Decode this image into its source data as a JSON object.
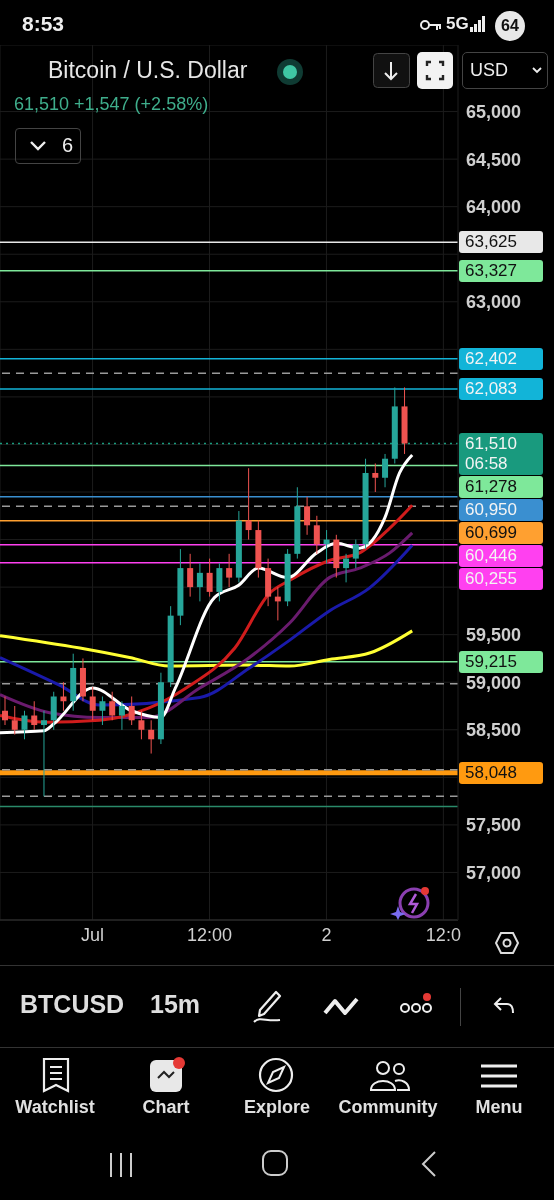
{
  "chart_data": {
    "type": "candlestick",
    "title": "Bitcoin / U.S. Dollar",
    "subtitle": "61,510 +1,547 (+2.58%)",
    "x": [
      "--06-30T15:00",
      "--06-30T16:00",
      "--06-30T17:00",
      "--06-30T18:00",
      "--06-30T19:00",
      "--06-30T20:00",
      "--06-30T21:00",
      "--06-30T22:00",
      "--06-30T23:00",
      "--07-01T00:00",
      "--07-01T01:00",
      "--07-01T02:00",
      "--07-01T03:00",
      "--07-01T04:00",
      "--07-01T05:00",
      "--07-01T06:00",
      "--07-01T07:00",
      "--07-01T08:00",
      "--07-01T09:00",
      "--07-01T10:00",
      "--07-01T11:00",
      "--07-01T12:00",
      "--07-01T13:00",
      "--07-01T14:00",
      "--07-01T15:00",
      "--07-01T16:00",
      "--07-01T17:00",
      "--07-01T18:00",
      "--07-01T19:00",
      "--07-01T20:00",
      "--07-01T21:00",
      "--07-01T22:00",
      "--07-01T23:00",
      "--07-02T00:00",
      "--07-02T01:00",
      "--07-02T02:00",
      "--07-02T03:00",
      "--07-02T04:00",
      "--07-02T05:00",
      "--07-02T06:00",
      "--07-02T07:00",
      "--07-02T08:00"
    ],
    "ohlc": [
      [
        58700,
        58850,
        58550,
        58600
      ],
      [
        58600,
        58750,
        58450,
        58500
      ],
      [
        58500,
        58700,
        58400,
        58650
      ],
      [
        58650,
        58800,
        58500,
        58550
      ],
      [
        58550,
        58700,
        57800,
        58600
      ],
      [
        58600,
        58900,
        58500,
        58850
      ],
      [
        58850,
        59000,
        58700,
        58800
      ],
      [
        58800,
        59300,
        58700,
        59150
      ],
      [
        59150,
        59250,
        58800,
        58850
      ],
      [
        58850,
        58950,
        58600,
        58700
      ],
      [
        58700,
        58850,
        58550,
        58800
      ],
      [
        58800,
        58900,
        58600,
        58650
      ],
      [
        58650,
        58800,
        58500,
        58750
      ],
      [
        58750,
        58850,
        58550,
        58600
      ],
      [
        58600,
        58700,
        58400,
        58500
      ],
      [
        58500,
        58600,
        58250,
        58400
      ],
      [
        58400,
        59100,
        58350,
        59000
      ],
      [
        59000,
        59800,
        58950,
        59700
      ],
      [
        59700,
        60400,
        59600,
        60200
      ],
      [
        60200,
        60350,
        59900,
        60000
      ],
      [
        60000,
        60250,
        59850,
        60150
      ],
      [
        60150,
        60300,
        59900,
        59950
      ],
      [
        59950,
        60250,
        59850,
        60200
      ],
      [
        60200,
        60350,
        60000,
        60100
      ],
      [
        60100,
        60800,
        60050,
        60700
      ],
      [
        60700,
        61250,
        60500,
        60600
      ],
      [
        60600,
        60700,
        60100,
        60200
      ],
      [
        60200,
        60300,
        59800,
        59900
      ],
      [
        59900,
        60000,
        59650,
        59850
      ],
      [
        59850,
        60400,
        59800,
        60350
      ],
      [
        60350,
        61050,
        60300,
        60850
      ],
      [
        60850,
        60950,
        60550,
        60650
      ],
      [
        60650,
        60750,
        60350,
        60450
      ],
      [
        60450,
        60600,
        60250,
        60500
      ],
      [
        60500,
        60550,
        60100,
        60200
      ],
      [
        60200,
        60350,
        60050,
        60300
      ],
      [
        60300,
        60500,
        60200,
        60450
      ],
      [
        60450,
        61350,
        60400,
        61200
      ],
      [
        61200,
        61300,
        61000,
        61150
      ],
      [
        61150,
        61400,
        61050,
        61350
      ],
      [
        61350,
        62100,
        61300,
        61900
      ],
      [
        61900,
        62100,
        61400,
        61510
      ]
    ],
    "series": [
      {
        "type": "line",
        "color": "#ffff33",
        "x": [
          "--06-30T14:30",
          "--06-30T22:42",
          "--07-01T03:48",
          "--07-01T07:54",
          "--07-01T16:06",
          "--07-01T20:12",
          "--07-02T00:18",
          "--07-02T04:30",
          "--07-02T08:48"
        ],
        "values": [
          59490,
          59360,
          59260,
          59170,
          59180,
          59170,
          59240,
          59310,
          59540
        ]
      },
      {
        "type": "line",
        "color": "#1a1aaa",
        "x": [
          "--06-30T14:30",
          "--06-30T20:36",
          "--07-01T00:42",
          "--07-01T11:00",
          "--07-01T16:06",
          "--07-01T20:12",
          "--07-02T00:18",
          "--07-02T04:24",
          "--07-02T08:48"
        ],
        "values": [
          59260,
          58970,
          58760,
          58840,
          59150,
          59440,
          59750,
          59990,
          60440
        ]
      },
      {
        "type": "line",
        "color": "#6a1b6e",
        "x": [
          "--06-30T14:30",
          "--06-30T19:36",
          "--07-01T00:42",
          "--07-01T05:48",
          "--07-01T11:00",
          "--07-01T16:06",
          "--07-01T20:12",
          "--07-02T00:18",
          "--07-02T03:24",
          "--07-02T06:30",
          "--07-02T08:48"
        ],
        "values": [
          58870,
          58680,
          58630,
          58630,
          58940,
          59260,
          59620,
          60100,
          60200,
          60360,
          60570
        ]
      },
      {
        "type": "line",
        "color": "#d01c1c",
        "x": [
          "--06-30T14:30",
          "--06-30T19:06",
          "--07-01T00:42",
          "--07-01T05:48",
          "--07-01T09:36",
          "--07-01T14:36",
          "--07-01T18:12",
          "--07-01T20:12",
          "--07-02T00:18",
          "--07-02T03:24",
          "--07-02T06:30",
          "--07-02T08:48"
        ],
        "values": [
          58650,
          58580,
          58600,
          58730,
          58940,
          59360,
          59940,
          60070,
          60280,
          60360,
          60620,
          60860
        ]
      },
      {
        "type": "line",
        "color": "#ffffff",
        "x": [
          "--06-30T14:30",
          "--06-30T19:00",
          "--06-30T20:00",
          "--07-01T00:00",
          "--07-01T04:00",
          "--07-01T07:00",
          "--07-01T08:30",
          "--07-01T12:30",
          "--07-01T15:00",
          "--07-01T17:00",
          "--07-01T20:00",
          "--07-01T23:00",
          "--07-02T01:00",
          "--07-02T03:24",
          "--07-02T06:00",
          "--07-02T07:30",
          "--07-02T08:48"
        ],
        "values": [
          58470,
          58490,
          58560,
          58940,
          58700,
          58630,
          58940,
          59890,
          60020,
          60200,
          60100,
          60360,
          60460,
          60410,
          60730,
          61200,
          61390
        ]
      }
    ],
    "xlim": [
      "--06-30T14:30",
      "--07-02T13:30"
    ],
    "xticks": [
      {
        "value": "--07-01",
        "label": "Jul"
      },
      {
        "value": "--07-01T12:00",
        "label": "12:00"
      },
      {
        "value": "--07-02",
        "label": "2"
      },
      {
        "value": "--07-02T12:00",
        "label": "12:0"
      }
    ],
    "ylim": [
      56500,
      65700
    ],
    "yticks": [
      {
        "value": 57000,
        "label": "57,000"
      },
      {
        "value": 57500,
        "label": "57,500"
      },
      {
        "value": 58000,
        "label": null
      },
      {
        "value": 58500,
        "label": "58,500"
      },
      {
        "value": 59000,
        "label": "59,000"
      },
      {
        "value": 59500,
        "label": "59,500"
      },
      {
        "value": 60000,
        "label": null
      },
      {
        "value": 60500,
        "label": null
      },
      {
        "value": 61000,
        "label": null
      },
      {
        "value": 61500,
        "label": null
      },
      {
        "value": 62000,
        "label": null
      },
      {
        "value": 62500,
        "label": null
      },
      {
        "value": 63000,
        "label": "63,000"
      },
      {
        "value": 63500,
        "label": null
      },
      {
        "value": 64000,
        "label": "64,000"
      },
      {
        "value": 64500,
        "label": "64,500"
      },
      {
        "value": 65000,
        "label": "65,000"
      }
    ],
    "grid": true,
    "ref_lines": [
      {
        "axis": "y",
        "value": 63625,
        "label": "63,625",
        "color": "#e8e8e8"
      },
      {
        "axis": "y",
        "value": 63327,
        "label": "63,327",
        "color": "#7ee89a"
      },
      {
        "axis": "y",
        "value": 62402,
        "label": "62,402",
        "color": "#12b4d8"
      },
      {
        "axis": "y",
        "value": 62083,
        "label": "62,083",
        "color": "#12b4d8"
      },
      {
        "axis": "y",
        "value": 61510,
        "label": "61,510\n06:58",
        "color": "#199a7e",
        "line_style": "dotted"
      },
      {
        "axis": "y",
        "value": 61278,
        "label": "61,278",
        "color": "#7ee89a"
      },
      {
        "axis": "y",
        "value": 60950,
        "label": "60,950",
        "color": "#3a8fd0"
      },
      {
        "axis": "y",
        "value": 60699,
        "label": "60,699",
        "color": "#ffa030"
      },
      {
        "axis": "y",
        "value": 60446,
        "label": "60,446",
        "color": "#ff40f0"
      },
      {
        "axis": "y",
        "value": 60255,
        "label": "60,255",
        "color": "#ff40f0"
      },
      {
        "axis": "y",
        "value": 59215,
        "label": "59,215",
        "color": "#7ee89a"
      },
      {
        "axis": "y",
        "value": 58048,
        "label": "58,048",
        "color": "#ff9a10"
      },
      {
        "axis": "y",
        "value": 62250,
        "label": null,
        "color": "#9a9a9a",
        "line_style": "dashed"
      },
      {
        "axis": "y",
        "value": 60850,
        "label": null,
        "color": "#9a9a9a",
        "line_style": "dashed"
      },
      {
        "axis": "y",
        "value": 58985,
        "label": null,
        "color": "#9a9a9a",
        "line_style": "dashed"
      },
      {
        "axis": "y",
        "value": 58080,
        "label": null,
        "color": "#9a9a9a",
        "line_style": "dashed"
      },
      {
        "axis": "y",
        "value": 57800,
        "label": null,
        "color": "#9a9a9a",
        "line_style": "dashed"
      },
      {
        "axis": "y",
        "value": 57693,
        "label": null,
        "color": "#2a8a6a"
      }
    ],
    "annotations": [
      "8:53",
      "5G",
      "64",
      "6",
      "USD",
      "BTCUSD",
      "15m",
      "Watchlist",
      "Chart",
      "Explore",
      "Community",
      "Menu"
    ]
  }
}
